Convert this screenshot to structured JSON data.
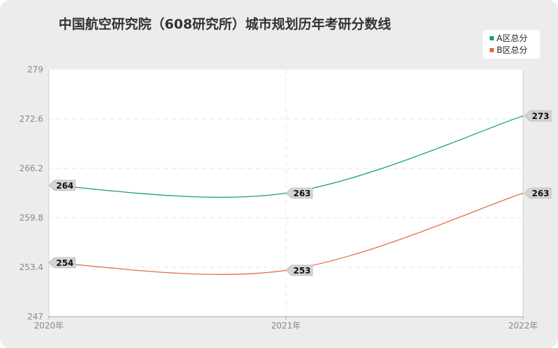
{
  "chart_data": {
    "type": "line",
    "title": "中国航空研究院（608研究所）城市规划历年考研分数线",
    "categories": [
      "2020年",
      "2021年",
      "2022年"
    ],
    "ylim": [
      247,
      279
    ],
    "yticks": [
      "279",
      "272.6",
      "266.2",
      "259.8",
      "253.4",
      "247"
    ],
    "ytick_values": [
      279,
      272.6,
      266.2,
      259.8,
      253.4,
      247
    ],
    "grid": true,
    "legend_position": "top-right",
    "series": [
      {
        "name": "A区总分",
        "values": [
          264,
          263,
          273
        ],
        "color": "#1a9c74"
      },
      {
        "name": "B区总分",
        "values": [
          254,
          253,
          263
        ],
        "color": "#e0703e"
      }
    ]
  }
}
